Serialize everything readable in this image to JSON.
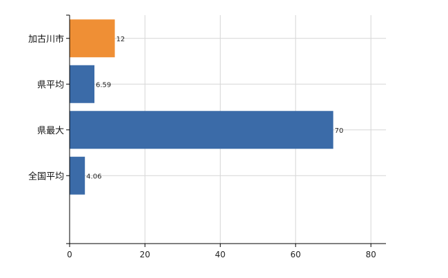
{
  "chart_data": {
    "type": "bar",
    "orientation": "horizontal",
    "categories": [
      "加古川市",
      "県平均",
      "県最大",
      "全国平均"
    ],
    "values": [
      12,
      6.59,
      70,
      4.06
    ],
    "data_labels": [
      "12",
      "6.59",
      "70",
      "4.06"
    ],
    "bar_colors": [
      "#ef8f35",
      "#3b6ba8",
      "#3b6ba8",
      "#3b6ba8"
    ],
    "title": "",
    "xlabel": "",
    "ylabel": "",
    "xlim": [
      0,
      84
    ],
    "x_ticks": [
      0,
      20,
      40,
      60,
      80
    ],
    "x_tick_labels": [
      "0",
      "20",
      "40",
      "60",
      "80"
    ],
    "grid": true,
    "legend": "none"
  },
  "colors": {
    "highlight": "#ef8f35",
    "default": "#3b6ba8",
    "grid": "#d6d6d6",
    "axis": "#000000"
  }
}
